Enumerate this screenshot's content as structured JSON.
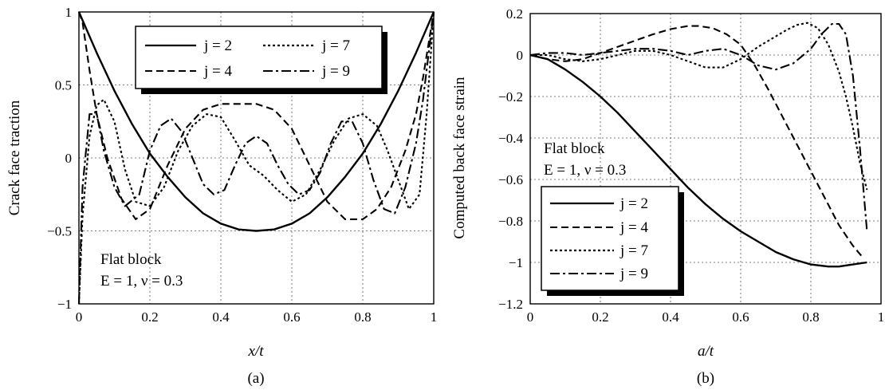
{
  "chart_data": [
    {
      "type": "line",
      "panel_label": "(a)",
      "xlabel": "x/t",
      "ylabel": "Crack face traction",
      "xlim": [
        0,
        1
      ],
      "ylim": [
        -1,
        1
      ],
      "xticks": [
        "0",
        "0.2",
        "0.4",
        "0.6",
        "0.8",
        "1"
      ],
      "yticks": [
        "−1",
        "−0.5",
        "0",
        "0.5",
        "1"
      ],
      "grid": true,
      "legend_position": "top-center",
      "annotation": [
        "Flat block",
        "E = 1, ν = 0.3"
      ],
      "series": [
        {
          "name": "j = 2",
          "style": "solid",
          "x": [
            0,
            0.05,
            0.1,
            0.15,
            0.2,
            0.25,
            0.3,
            0.35,
            0.4,
            0.45,
            0.5,
            0.55,
            0.6,
            0.65,
            0.7,
            0.75,
            0.8,
            0.85,
            0.9,
            0.95,
            1
          ],
          "y": [
            1,
            0.72,
            0.46,
            0.23,
            0.03,
            -0.13,
            -0.27,
            -0.38,
            -0.45,
            -0.49,
            -0.5,
            -0.49,
            -0.45,
            -0.38,
            -0.27,
            -0.13,
            0.03,
            0.23,
            0.46,
            0.72,
            1
          ]
        },
        {
          "name": "j = 4",
          "style": "dashed",
          "x": [
            0,
            0.01,
            0.03,
            0.05,
            0.08,
            0.12,
            0.16,
            0.2,
            0.25,
            0.3,
            0.35,
            0.4,
            0.45,
            0.5,
            0.55,
            0.6,
            0.65,
            0.7,
            0.75,
            0.8,
            0.84,
            0.88,
            0.92,
            0.95,
            0.97,
            0.99,
            1
          ],
          "y": [
            1,
            0.93,
            0.6,
            0.3,
            0.0,
            -0.28,
            -0.42,
            -0.35,
            -0.05,
            0.2,
            0.33,
            0.37,
            0.37,
            0.37,
            0.33,
            0.2,
            -0.05,
            -0.3,
            -0.42,
            -0.42,
            -0.35,
            -0.2,
            0.05,
            0.3,
            0.55,
            0.85,
            1
          ]
        },
        {
          "name": "j = 7",
          "style": "dotted",
          "x": [
            0,
            0.01,
            0.03,
            0.05,
            0.07,
            0.1,
            0.13,
            0.16,
            0.2,
            0.24,
            0.28,
            0.32,
            0.36,
            0.4,
            0.44,
            0.48,
            0.52,
            0.56,
            0.6,
            0.64,
            0.68,
            0.72,
            0.76,
            0.8,
            0.84,
            0.87,
            0.9,
            0.93,
            0.96,
            0.98,
            1
          ],
          "y": [
            -1,
            -0.4,
            0.15,
            0.36,
            0.4,
            0.25,
            -0.08,
            -0.3,
            -0.33,
            -0.2,
            0.05,
            0.22,
            0.3,
            0.28,
            0.12,
            -0.05,
            -0.12,
            -0.22,
            -0.3,
            -0.25,
            -0.08,
            0.12,
            0.27,
            0.3,
            0.22,
            0.05,
            -0.15,
            -0.35,
            -0.25,
            0.3,
            1
          ]
        },
        {
          "name": "j = 9",
          "style": "dashdot",
          "x": [
            0,
            0.01,
            0.03,
            0.05,
            0.07,
            0.1,
            0.13,
            0.17,
            0.2,
            0.23,
            0.26,
            0.29,
            0.32,
            0.35,
            0.38,
            0.41,
            0.44,
            0.47,
            0.5,
            0.53,
            0.56,
            0.59,
            0.62,
            0.65,
            0.68,
            0.71,
            0.74,
            0.77,
            0.8,
            0.83,
            0.86,
            0.89,
            0.92,
            0.95,
            0.97,
            0.99,
            1
          ],
          "y": [
            -1,
            -0.2,
            0.3,
            0.3,
            0.05,
            -0.2,
            -0.33,
            -0.25,
            0.05,
            0.22,
            0.27,
            0.18,
            0,
            -0.18,
            -0.25,
            -0.22,
            -0.05,
            0.1,
            0.15,
            0.1,
            -0.05,
            -0.18,
            -0.25,
            -0.22,
            -0.1,
            0.1,
            0.25,
            0.25,
            0.1,
            -0.15,
            -0.35,
            -0.38,
            -0.2,
            0.1,
            0.4,
            0.8,
            1
          ]
        }
      ]
    },
    {
      "type": "line",
      "panel_label": "(b)",
      "xlabel": "a/t",
      "ylabel": "Computed back face strain",
      "xlim": [
        0,
        1
      ],
      "ylim": [
        -1.2,
        0.2
      ],
      "xticks": [
        "0",
        "0.2",
        "0.4",
        "0.6",
        "0.8",
        "1"
      ],
      "yticks": [
        "−1.2",
        "−1",
        "−0.8",
        "−0.6",
        "−0.4",
        "−0.2",
        "0",
        "0.2"
      ],
      "grid": true,
      "legend_position": "bottom-left",
      "annotation": [
        "Flat block",
        "E = 1, ν = 0.3"
      ],
      "series": [
        {
          "name": "j = 2",
          "style": "solid",
          "x": [
            0,
            0.05,
            0.1,
            0.15,
            0.2,
            0.25,
            0.3,
            0.35,
            0.4,
            0.45,
            0.5,
            0.55,
            0.6,
            0.65,
            0.7,
            0.75,
            0.8,
            0.85,
            0.88,
            0.92,
            0.96
          ],
          "y": [
            0,
            -0.02,
            -0.07,
            -0.13,
            -0.2,
            -0.28,
            -0.37,
            -0.46,
            -0.55,
            -0.64,
            -0.72,
            -0.79,
            -0.85,
            -0.9,
            -0.95,
            -0.985,
            -1.01,
            -1.02,
            -1.02,
            -1.01,
            -1.0
          ]
        },
        {
          "name": "j = 4",
          "style": "dashed",
          "x": [
            0,
            0.05,
            0.1,
            0.15,
            0.2,
            0.25,
            0.3,
            0.35,
            0.4,
            0.45,
            0.48,
            0.52,
            0.56,
            0.6,
            0.64,
            0.68,
            0.72,
            0.76,
            0.8,
            0.84,
            0.88,
            0.92,
            0.95
          ],
          "y": [
            0,
            -0.02,
            -0.03,
            -0.02,
            0.01,
            0.04,
            0.07,
            0.1,
            0.125,
            0.14,
            0.14,
            0.13,
            0.1,
            0.05,
            -0.05,
            -0.17,
            -0.3,
            -0.43,
            -0.56,
            -0.69,
            -0.82,
            -0.92,
            -0.98
          ]
        },
        {
          "name": "j = 7",
          "style": "dotted",
          "x": [
            0,
            0.05,
            0.1,
            0.15,
            0.2,
            0.25,
            0.3,
            0.35,
            0.4,
            0.45,
            0.5,
            0.55,
            0.6,
            0.65,
            0.7,
            0.73,
            0.76,
            0.79,
            0.82,
            0.85,
            0.88,
            0.9,
            0.92,
            0.94,
            0.96
          ],
          "y": [
            0,
            0,
            -0.02,
            -0.03,
            -0.02,
            0,
            0.02,
            0.02,
            0,
            -0.03,
            -0.06,
            -0.06,
            -0.02,
            0.04,
            0.09,
            0.12,
            0.145,
            0.155,
            0.13,
            0.05,
            -0.08,
            -0.2,
            -0.35,
            -0.52,
            -0.65
          ]
        },
        {
          "name": "j = 9",
          "style": "dashdot",
          "x": [
            0,
            0.05,
            0.1,
            0.15,
            0.2,
            0.25,
            0.3,
            0.35,
            0.4,
            0.45,
            0.5,
            0.55,
            0.6,
            0.65,
            0.7,
            0.75,
            0.8,
            0.83,
            0.86,
            0.88,
            0.9,
            0.92,
            0.94,
            0.96
          ],
          "y": [
            0,
            0.01,
            0.01,
            0,
            0.01,
            0.02,
            0.03,
            0.03,
            0.02,
            0,
            0.02,
            0.03,
            0,
            -0.05,
            -0.07,
            -0.04,
            0.03,
            0.1,
            0.15,
            0.15,
            0.1,
            -0.1,
            -0.45,
            -0.85
          ]
        }
      ]
    }
  ]
}
